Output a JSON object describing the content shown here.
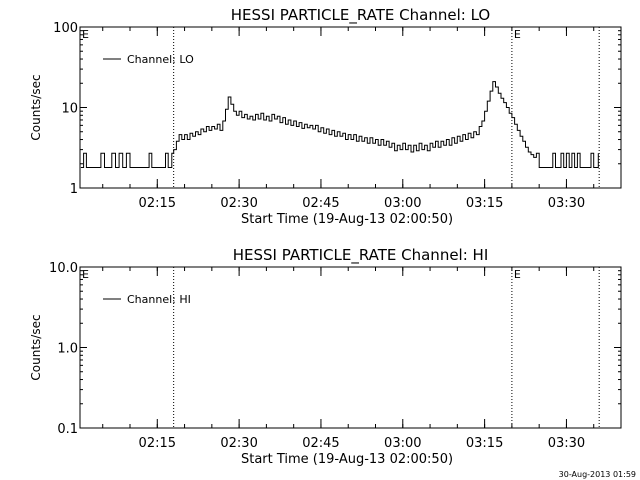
{
  "footer_timestamp": "30-Aug-2013 01:59",
  "chart_data": [
    {
      "type": "line",
      "title": "HESSI PARTICLE_RATE Channel: LO",
      "xlabel": "Start Time (19-Aug-13 02:00:50)",
      "ylabel": "Counts/sec",
      "y_scale": "log",
      "ylim": [
        1,
        100
      ],
      "y_ticks": [
        1,
        10,
        100
      ],
      "y_tick_labels": [
        "1",
        "10",
        "100"
      ],
      "xlim": [
        "02:00:50",
        "03:40:00"
      ],
      "x_ticks": [
        "02:15",
        "02:30",
        "02:45",
        "03:00",
        "03:15",
        "03:30"
      ],
      "x_tick_labels": [
        "02:15",
        "02:30",
        "02:45",
        "03:00",
        "03:15",
        "03:30"
      ],
      "vertical_markers": [
        "02:18:00",
        "03:20:00",
        "03:36:00"
      ],
      "e_markers": [
        "02:00:50",
        "03:20:00"
      ],
      "e_label": "E",
      "legend": {
        "position": "top-left",
        "entries": [
          "Channel: LO"
        ]
      },
      "series": [
        {
          "name": "Channel: LO",
          "points": [
            [
              "02:01:00",
              1.8
            ],
            [
              "02:01:30",
              2.7
            ],
            [
              "02:02:00",
              1.8
            ],
            [
              "02:04:00",
              1.8
            ],
            [
              "02:04:40",
              2.7
            ],
            [
              "02:05:20",
              1.8
            ],
            [
              "02:06:00",
              1.8
            ],
            [
              "02:06:40",
              2.7
            ],
            [
              "02:07:20",
              1.8
            ],
            [
              "02:08:00",
              2.7
            ],
            [
              "02:08:40",
              1.8
            ],
            [
              "02:09:20",
              2.7
            ],
            [
              "02:10:00",
              1.8
            ],
            [
              "02:13:00",
              1.8
            ],
            [
              "02:13:30",
              2.7
            ],
            [
              "02:14:00",
              1.8
            ],
            [
              "02:16:00",
              1.8
            ],
            [
              "02:16:30",
              2.7
            ],
            [
              "02:17:00",
              1.8
            ],
            [
              "02:17:40",
              2.7
            ],
            [
              "02:18:00",
              3.0
            ],
            [
              "02:18:30",
              3.8
            ],
            [
              "02:19:00",
              4.6
            ],
            [
              "02:19:30",
              4.0
            ],
            [
              "02:20:00",
              4.6
            ],
            [
              "02:20:30",
              4.0
            ],
            [
              "02:21:00",
              4.8
            ],
            [
              "02:21:30",
              4.4
            ],
            [
              "02:22:00",
              5.0
            ],
            [
              "02:22:30",
              4.6
            ],
            [
              "02:23:00",
              5.4
            ],
            [
              "02:23:30",
              5.0
            ],
            [
              "02:24:00",
              5.8
            ],
            [
              "02:24:30",
              5.2
            ],
            [
              "02:25:00",
              5.8
            ],
            [
              "02:25:30",
              5.4
            ],
            [
              "02:26:00",
              6.2
            ],
            [
              "02:26:30",
              5.2
            ],
            [
              "02:27:00",
              6.8
            ],
            [
              "02:27:30",
              9.5
            ],
            [
              "02:28:00",
              13.5
            ],
            [
              "02:28:30",
              11.0
            ],
            [
              "02:29:00",
              9.0
            ],
            [
              "02:29:30",
              8.0
            ],
            [
              "02:30:00",
              9.0
            ],
            [
              "02:30:30",
              7.5
            ],
            [
              "02:31:00",
              8.2
            ],
            [
              "02:31:30",
              7.2
            ],
            [
              "02:32:00",
              7.8
            ],
            [
              "02:32:30",
              7.0
            ],
            [
              "02:33:00",
              8.2
            ],
            [
              "02:33:30",
              7.2
            ],
            [
              "02:34:00",
              8.5
            ],
            [
              "02:34:30",
              7.0
            ],
            [
              "02:35:00",
              7.8
            ],
            [
              "02:35:30",
              6.8
            ],
            [
              "02:36:00",
              8.2
            ],
            [
              "02:36:30",
              7.2
            ],
            [
              "02:37:00",
              7.8
            ],
            [
              "02:37:30",
              6.5
            ],
            [
              "02:38:00",
              7.5
            ],
            [
              "02:38:30",
              6.2
            ],
            [
              "02:39:00",
              7.0
            ],
            [
              "02:39:30",
              6.0
            ],
            [
              "02:40:00",
              6.8
            ],
            [
              "02:40:30",
              5.8
            ],
            [
              "02:41:00",
              6.5
            ],
            [
              "02:41:30",
              5.5
            ],
            [
              "02:42:00",
              6.2
            ],
            [
              "02:42:30",
              5.6
            ],
            [
              "02:43:00",
              6.0
            ],
            [
              "02:43:30",
              5.4
            ],
            [
              "02:44:00",
              6.0
            ],
            [
              "02:44:30",
              5.0
            ],
            [
              "02:45:00",
              5.6
            ],
            [
              "02:45:30",
              4.8
            ],
            [
              "02:46:00",
              5.4
            ],
            [
              "02:46:30",
              4.6
            ],
            [
              "02:47:00",
              5.2
            ],
            [
              "02:47:30",
              4.4
            ],
            [
              "02:48:00",
              5.0
            ],
            [
              "02:48:30",
              4.4
            ],
            [
              "02:49:00",
              4.8
            ],
            [
              "02:49:30",
              4.0
            ],
            [
              "02:50:00",
              4.6
            ],
            [
              "02:50:30",
              4.0
            ],
            [
              "02:51:00",
              4.6
            ],
            [
              "02:51:30",
              3.8
            ],
            [
              "02:52:00",
              4.4
            ],
            [
              "02:52:30",
              3.8
            ],
            [
              "02:53:00",
              4.2
            ],
            [
              "02:53:30",
              3.6
            ],
            [
              "02:54:00",
              4.2
            ],
            [
              "02:54:30",
              3.6
            ],
            [
              "02:55:00",
              4.0
            ],
            [
              "02:55:30",
              3.4
            ],
            [
              "02:56:00",
              4.0
            ],
            [
              "02:56:30",
              3.4
            ],
            [
              "02:57:00",
              3.8
            ],
            [
              "02:57:30",
              3.2
            ],
            [
              "02:58:00",
              3.6
            ],
            [
              "02:58:30",
              2.9
            ],
            [
              "02:59:00",
              3.4
            ],
            [
              "02:59:30",
              3.0
            ],
            [
              "03:00:00",
              3.6
            ],
            [
              "03:00:30",
              3.0
            ],
            [
              "03:01:00",
              3.4
            ],
            [
              "03:01:30",
              2.8
            ],
            [
              "03:02:00",
              3.4
            ],
            [
              "03:02:30",
              2.9
            ],
            [
              "03:03:00",
              3.6
            ],
            [
              "03:03:30",
              3.0
            ],
            [
              "03:04:00",
              3.4
            ],
            [
              "03:04:30",
              2.9
            ],
            [
              "03:05:00",
              3.6
            ],
            [
              "03:05:30",
              3.2
            ],
            [
              "03:06:00",
              3.8
            ],
            [
              "03:06:30",
              3.2
            ],
            [
              "03:07:00",
              3.8
            ],
            [
              "03:07:30",
              3.4
            ],
            [
              "03:08:00",
              4.0
            ],
            [
              "03:08:30",
              3.4
            ],
            [
              "03:09:00",
              4.2
            ],
            [
              "03:09:30",
              3.6
            ],
            [
              "03:10:00",
              4.4
            ],
            [
              "03:10:30",
              3.8
            ],
            [
              "03:11:00",
              4.6
            ],
            [
              "03:11:30",
              4.0
            ],
            [
              "03:12:00",
              4.8
            ],
            [
              "03:12:30",
              4.2
            ],
            [
              "03:13:00",
              5.0
            ],
            [
              "03:13:30",
              4.6
            ],
            [
              "03:14:00",
              5.8
            ],
            [
              "03:14:30",
              6.8
            ],
            [
              "03:15:00",
              9.0
            ],
            [
              "03:15:30",
              12.0
            ],
            [
              "03:16:00",
              16.0
            ],
            [
              "03:16:30",
              21.0
            ],
            [
              "03:17:00",
              18.0
            ],
            [
              "03:17:30",
              15.0
            ],
            [
              "03:18:00",
              13.0
            ],
            [
              "03:18:30",
              11.5
            ],
            [
              "03:19:00",
              10.0
            ],
            [
              "03:19:30",
              8.5
            ],
            [
              "03:20:00",
              7.5
            ],
            [
              "03:20:30",
              6.2
            ],
            [
              "03:21:00",
              5.2
            ],
            [
              "03:21:30",
              4.4
            ],
            [
              "03:22:00",
              3.8
            ],
            [
              "03:22:30",
              3.2
            ],
            [
              "03:23:00",
              2.8
            ],
            [
              "03:23:30",
              2.6
            ],
            [
              "03:24:00",
              2.4
            ],
            [
              "03:24:30",
              2.7
            ],
            [
              "03:25:00",
              1.8
            ],
            [
              "03:27:00",
              1.8
            ],
            [
              "03:27:30",
              2.7
            ],
            [
              "03:28:00",
              1.8
            ],
            [
              "03:29:00",
              2.7
            ],
            [
              "03:29:30",
              1.8
            ],
            [
              "03:30:00",
              2.7
            ],
            [
              "03:30:30",
              1.8
            ],
            [
              "03:31:00",
              2.7
            ],
            [
              "03:31:30",
              1.8
            ],
            [
              "03:32:00",
              2.7
            ],
            [
              "03:32:30",
              1.8
            ],
            [
              "03:34:00",
              1.8
            ],
            [
              "03:34:30",
              2.7
            ],
            [
              "03:35:00",
              1.8
            ],
            [
              "03:35:50",
              2.7
            ]
          ]
        }
      ]
    },
    {
      "type": "line",
      "title": "HESSI PARTICLE_RATE Channel: HI",
      "xlabel": "Start Time (19-Aug-13 02:00:50)",
      "ylabel": "Counts/sec",
      "y_scale": "log",
      "ylim": [
        0.1,
        10
      ],
      "y_ticks": [
        0.1,
        1,
        10
      ],
      "y_tick_labels": [
        "0.1",
        "1.0",
        "10.0"
      ],
      "xlim": [
        "02:00:50",
        "03:40:00"
      ],
      "x_ticks": [
        "02:15",
        "02:30",
        "02:45",
        "03:00",
        "03:15",
        "03:30"
      ],
      "x_tick_labels": [
        "02:15",
        "02:30",
        "02:45",
        "03:00",
        "03:15",
        "03:30"
      ],
      "vertical_markers": [
        "02:18:00",
        "03:20:00",
        "03:36:00"
      ],
      "e_markers": [
        "02:00:50",
        "03:20:00"
      ],
      "e_label": "E",
      "legend": {
        "position": "top-left",
        "entries": [
          "Channel: HI"
        ]
      },
      "series": [
        {
          "name": "Channel: HI",
          "points": []
        }
      ]
    }
  ]
}
